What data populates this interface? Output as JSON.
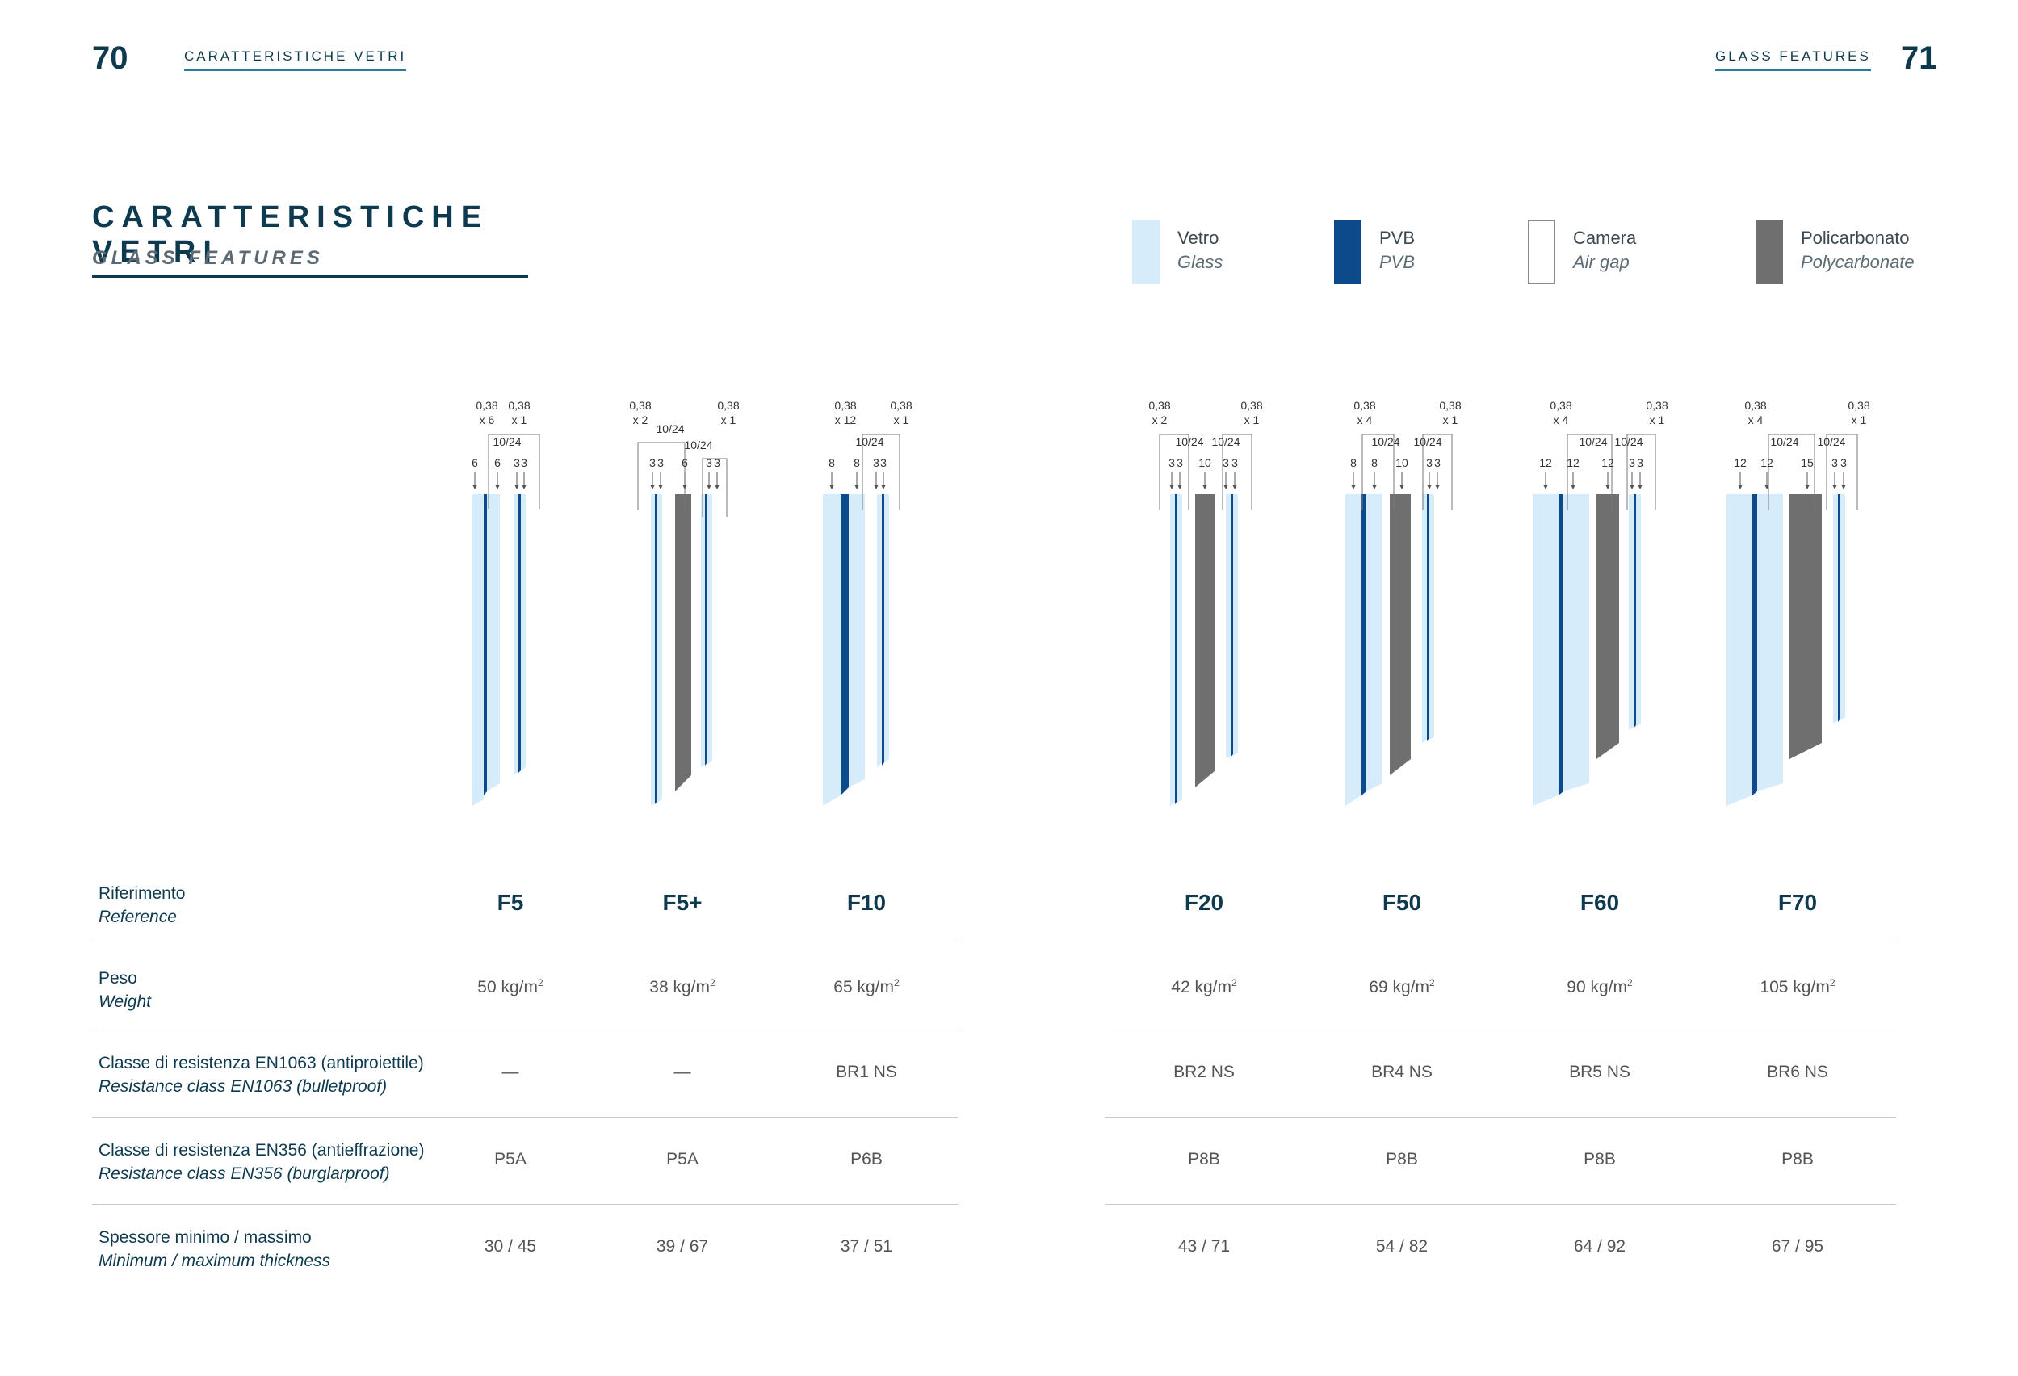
{
  "header": {
    "left_page_number": "70",
    "left_running_title": "CARATTERISTICHE VETRI",
    "right_running_title": "GLASS FEATURES",
    "right_page_number": "71"
  },
  "title": {
    "main": "CARATTERISTICHE VETRI",
    "sub": "GLASS FEATURES"
  },
  "legend": [
    {
      "name": "Vetro",
      "translation": "Glass",
      "color": "#d6ecfa"
    },
    {
      "name": "PVB",
      "translation": "PVB",
      "color": "#0d4a8c"
    },
    {
      "name": "Camera",
      "translation": "Air gap",
      "color": "#ffffff"
    },
    {
      "name": "Policarbonato",
      "translation": "Polycarbonate",
      "color": "#6f6f6f"
    }
  ],
  "diagram_annotations": [
    {
      "ref": "F5",
      "pvb_left": "0,38",
      "pvb_left_mult": "x 6",
      "pvb_right": "0,38",
      "pvb_right_mult": "x 1",
      "gaps": [
        "10/24"
      ],
      "layers": [
        "6",
        "6",
        "3",
        "3"
      ]
    },
    {
      "ref": "F5+",
      "pvb_left": "0,38",
      "pvb_left_mult": "x 2",
      "pvb_right": "0,38",
      "pvb_right_mult": "x 1",
      "gaps": [
        "10/24",
        "10/24"
      ],
      "layers": [
        "3",
        "3",
        "6",
        "3",
        "3"
      ]
    },
    {
      "ref": "F10",
      "pvb_left": "0,38",
      "pvb_left_mult": "x 12",
      "pvb_right": "0,38",
      "pvb_right_mult": "x 1",
      "gaps": [
        "10/24"
      ],
      "layers": [
        "8",
        "8",
        "3",
        "3"
      ]
    },
    {
      "ref": "F20",
      "pvb_left": "0,38",
      "pvb_left_mult": "x 2",
      "pvb_right": "0,38",
      "pvb_right_mult": "x 1",
      "gaps": [
        "10/24",
        "10/24"
      ],
      "layers": [
        "3",
        "3",
        "10",
        "3",
        "3"
      ]
    },
    {
      "ref": "F50",
      "pvb_left": "0,38",
      "pvb_left_mult": "x 4",
      "pvb_right": "0,38",
      "pvb_right_mult": "x 1",
      "gaps": [
        "10/24",
        "10/24"
      ],
      "layers": [
        "8",
        "8",
        "10",
        "3",
        "3"
      ]
    },
    {
      "ref": "F60",
      "pvb_left": "0,38",
      "pvb_left_mult": "x 4",
      "pvb_right": "0,38",
      "pvb_right_mult": "x 1",
      "gaps": [
        "10/24",
        "10/24"
      ],
      "layers": [
        "12",
        "12",
        "12",
        "3",
        "3"
      ]
    },
    {
      "ref": "F70",
      "pvb_left": "0,38",
      "pvb_left_mult": "x 4",
      "pvb_right": "0,38",
      "pvb_right_mult": "x 1",
      "gaps": [
        "10/24",
        "10/24"
      ],
      "layers": [
        "12",
        "12",
        "15",
        "3",
        "3"
      ]
    }
  ],
  "table": {
    "row_labels": [
      {
        "it": "Riferimento",
        "en": "Reference"
      },
      {
        "it": "Peso",
        "en": "Weight"
      },
      {
        "it": "Classe di resistenza EN1063 (antiproiettile)",
        "en": "Resistance class EN1063 (bulletproof)"
      },
      {
        "it": "Classe di resistenza EN356 (antieffrazione)",
        "en": "Resistance class EN356 (burglarproof)"
      },
      {
        "it": "Spessore minimo / massimo",
        "en": "Minimum / maximum thickness"
      }
    ],
    "weight_unit": "kg/m",
    "weight_exp": "2",
    "columns": [
      {
        "reference": "F5",
        "weight": "50",
        "en1063": "—",
        "en356": "P5A",
        "thickness": "30 / 45"
      },
      {
        "reference": "F5+",
        "weight": "38",
        "en1063": "—",
        "en356": "P5A",
        "thickness": "39 / 67"
      },
      {
        "reference": "F10",
        "weight": "65",
        "en1063": "BR1 NS",
        "en356": "P6B",
        "thickness": "37 / 51"
      },
      {
        "reference": "F20",
        "weight": "42",
        "en1063": "BR2 NS",
        "en356": "P8B",
        "thickness": "43 / 71"
      },
      {
        "reference": "F50",
        "weight": "69",
        "en1063": "BR4 NS",
        "en356": "P8B",
        "thickness": "54 / 82"
      },
      {
        "reference": "F60",
        "weight": "90",
        "en1063": "BR5 NS",
        "en356": "P8B",
        "thickness": "64 / 92"
      },
      {
        "reference": "F70",
        "weight": "105",
        "en1063": "BR6 NS",
        "en356": "P8B",
        "thickness": "67 / 95"
      }
    ]
  }
}
